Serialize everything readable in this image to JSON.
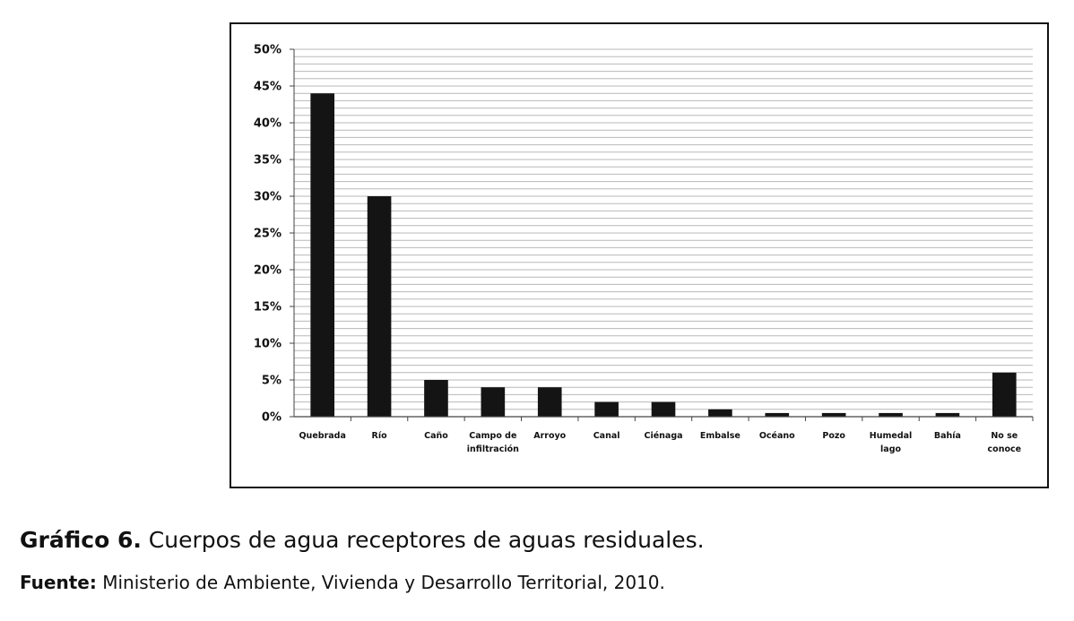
{
  "chart_data": {
    "type": "bar",
    "categories": [
      [
        "Quebrada"
      ],
      [
        "Río"
      ],
      [
        "Caño"
      ],
      [
        "Campo de",
        "infiltración"
      ],
      [
        "Arroyo"
      ],
      [
        "Canal"
      ],
      [
        "Ciénaga"
      ],
      [
        "Embalse"
      ],
      [
        "Océano"
      ],
      [
        "Pozo"
      ],
      [
        "Humedal",
        "lago"
      ],
      [
        "Bahía"
      ],
      [
        "No se",
        "conoce"
      ]
    ],
    "values": [
      44,
      30,
      5,
      4,
      4,
      2,
      2,
      1,
      0.5,
      0.5,
      0.5,
      0.5,
      6
    ],
    "ylim": [
      0,
      50
    ],
    "yticks": [
      0,
      5,
      10,
      15,
      20,
      25,
      30,
      35,
      40,
      45,
      50
    ],
    "ytick_labels": [
      "0%",
      "5%",
      "10%",
      "15%",
      "20%",
      "25%",
      "30%",
      "35%",
      "40%",
      "45%",
      "50%"
    ],
    "grid": true,
    "minor_grid_step": 1,
    "bar_color": "#141414",
    "grid_color": "#b8b8b8"
  },
  "caption": {
    "prefix": "Gráfico 6.",
    "text": " Cuerpos de agua receptores de aguas residuales."
  },
  "source": {
    "prefix": "Fuente:",
    "text": " Ministerio de Ambiente, Vivienda y Desarrollo Territorial, 2010."
  }
}
